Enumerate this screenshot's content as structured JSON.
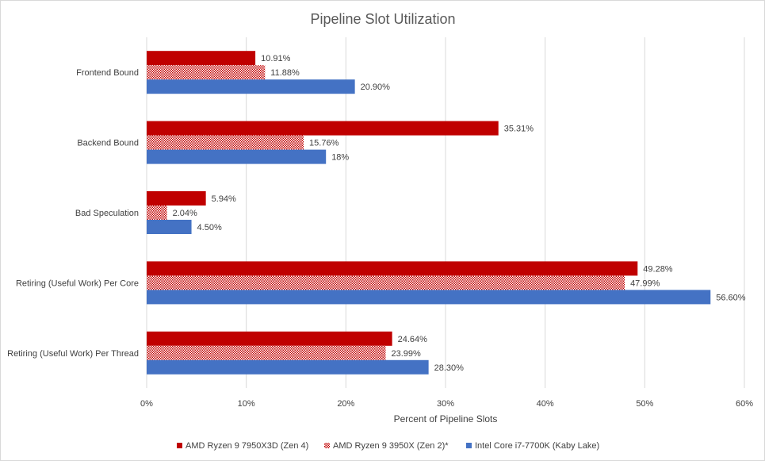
{
  "chart_data": {
    "type": "bar",
    "orientation": "horizontal",
    "title": "Pipeline Slot Utilization",
    "xlabel": "Percent of Pipeline Slots",
    "ylabel": "",
    "xlim": [
      0,
      60
    ],
    "tick_values": [
      0,
      10,
      20,
      30,
      40,
      50,
      60
    ],
    "tick_labels": [
      "0%",
      "10%",
      "20%",
      "30%",
      "40%",
      "50%",
      "60%"
    ],
    "grid": true,
    "legend_position": "bottom",
    "categories": [
      "Frontend Bound",
      "Backend Bound",
      "Bad Speculation",
      "Retiring (Useful Work) Per Core",
      "Retiring (Useful Work) Per Thread"
    ],
    "series": [
      {
        "name": "AMD Ryzen 9 7950X3D (Zen 4)",
        "color": "#c00000",
        "pattern": "solid",
        "values": [
          10.91,
          35.31,
          5.94,
          49.28,
          24.64
        ],
        "labels": [
          "10.91%",
          "35.31%",
          "5.94%",
          "49.28%",
          "24.64%"
        ]
      },
      {
        "name": "AMD Ryzen 9 3950X (Zen 2)*",
        "color": "#c00000",
        "pattern": "dotted",
        "values": [
          11.88,
          15.76,
          2.04,
          47.99,
          23.99
        ],
        "labels": [
          "11.88%",
          "15.76%",
          "2.04%",
          "47.99%",
          "23.99%"
        ]
      },
      {
        "name": "Intel Core i7-7700K (Kaby Lake)",
        "color": "#4472c4",
        "pattern": "solid",
        "values": [
          20.9,
          18,
          4.5,
          56.6,
          28.3
        ],
        "labels": [
          "20.90%",
          "18%",
          "4.50%",
          "56.60%",
          "28.30%"
        ]
      }
    ]
  }
}
